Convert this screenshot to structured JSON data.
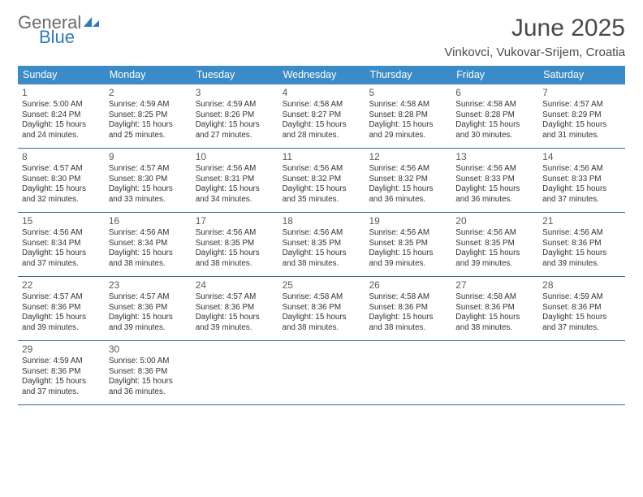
{
  "logo": {
    "general": "General",
    "blue": "Blue"
  },
  "title": "June 2025",
  "location": "Vinkovci, Vukovar-Srijem, Croatia",
  "colors": {
    "header_bg": "#3b8bc8",
    "header_text": "#ffffff",
    "rule": "#3b6a93",
    "logo_gray": "#6a6a6a",
    "logo_blue": "#2e7abf",
    "body_text": "#333333",
    "title_text": "#4a4a4a"
  },
  "weekdays": [
    "Sunday",
    "Monday",
    "Tuesday",
    "Wednesday",
    "Thursday",
    "Friday",
    "Saturday"
  ],
  "days": [
    {
      "n": "1",
      "sunrise": "5:00 AM",
      "sunset": "8:24 PM",
      "daylight": "15 hours and 24 minutes."
    },
    {
      "n": "2",
      "sunrise": "4:59 AM",
      "sunset": "8:25 PM",
      "daylight": "15 hours and 25 minutes."
    },
    {
      "n": "3",
      "sunrise": "4:59 AM",
      "sunset": "8:26 PM",
      "daylight": "15 hours and 27 minutes."
    },
    {
      "n": "4",
      "sunrise": "4:58 AM",
      "sunset": "8:27 PM",
      "daylight": "15 hours and 28 minutes."
    },
    {
      "n": "5",
      "sunrise": "4:58 AM",
      "sunset": "8:28 PM",
      "daylight": "15 hours and 29 minutes."
    },
    {
      "n": "6",
      "sunrise": "4:58 AM",
      "sunset": "8:28 PM",
      "daylight": "15 hours and 30 minutes."
    },
    {
      "n": "7",
      "sunrise": "4:57 AM",
      "sunset": "8:29 PM",
      "daylight": "15 hours and 31 minutes."
    },
    {
      "n": "8",
      "sunrise": "4:57 AM",
      "sunset": "8:30 PM",
      "daylight": "15 hours and 32 minutes."
    },
    {
      "n": "9",
      "sunrise": "4:57 AM",
      "sunset": "8:30 PM",
      "daylight": "15 hours and 33 minutes."
    },
    {
      "n": "10",
      "sunrise": "4:56 AM",
      "sunset": "8:31 PM",
      "daylight": "15 hours and 34 minutes."
    },
    {
      "n": "11",
      "sunrise": "4:56 AM",
      "sunset": "8:32 PM",
      "daylight": "15 hours and 35 minutes."
    },
    {
      "n": "12",
      "sunrise": "4:56 AM",
      "sunset": "8:32 PM",
      "daylight": "15 hours and 36 minutes."
    },
    {
      "n": "13",
      "sunrise": "4:56 AM",
      "sunset": "8:33 PM",
      "daylight": "15 hours and 36 minutes."
    },
    {
      "n": "14",
      "sunrise": "4:56 AM",
      "sunset": "8:33 PM",
      "daylight": "15 hours and 37 minutes."
    },
    {
      "n": "15",
      "sunrise": "4:56 AM",
      "sunset": "8:34 PM",
      "daylight": "15 hours and 37 minutes."
    },
    {
      "n": "16",
      "sunrise": "4:56 AM",
      "sunset": "8:34 PM",
      "daylight": "15 hours and 38 minutes."
    },
    {
      "n": "17",
      "sunrise": "4:56 AM",
      "sunset": "8:35 PM",
      "daylight": "15 hours and 38 minutes."
    },
    {
      "n": "18",
      "sunrise": "4:56 AM",
      "sunset": "8:35 PM",
      "daylight": "15 hours and 38 minutes."
    },
    {
      "n": "19",
      "sunrise": "4:56 AM",
      "sunset": "8:35 PM",
      "daylight": "15 hours and 39 minutes."
    },
    {
      "n": "20",
      "sunrise": "4:56 AM",
      "sunset": "8:35 PM",
      "daylight": "15 hours and 39 minutes."
    },
    {
      "n": "21",
      "sunrise": "4:56 AM",
      "sunset": "8:36 PM",
      "daylight": "15 hours and 39 minutes."
    },
    {
      "n": "22",
      "sunrise": "4:57 AM",
      "sunset": "8:36 PM",
      "daylight": "15 hours and 39 minutes."
    },
    {
      "n": "23",
      "sunrise": "4:57 AM",
      "sunset": "8:36 PM",
      "daylight": "15 hours and 39 minutes."
    },
    {
      "n": "24",
      "sunrise": "4:57 AM",
      "sunset": "8:36 PM",
      "daylight": "15 hours and 39 minutes."
    },
    {
      "n": "25",
      "sunrise": "4:58 AM",
      "sunset": "8:36 PM",
      "daylight": "15 hours and 38 minutes."
    },
    {
      "n": "26",
      "sunrise": "4:58 AM",
      "sunset": "8:36 PM",
      "daylight": "15 hours and 38 minutes."
    },
    {
      "n": "27",
      "sunrise": "4:58 AM",
      "sunset": "8:36 PM",
      "daylight": "15 hours and 38 minutes."
    },
    {
      "n": "28",
      "sunrise": "4:59 AM",
      "sunset": "8:36 PM",
      "daylight": "15 hours and 37 minutes."
    },
    {
      "n": "29",
      "sunrise": "4:59 AM",
      "sunset": "8:36 PM",
      "daylight": "15 hours and 37 minutes."
    },
    {
      "n": "30",
      "sunrise": "5:00 AM",
      "sunset": "8:36 PM",
      "daylight": "15 hours and 36 minutes."
    }
  ],
  "labels": {
    "sunrise": "Sunrise: ",
    "sunset": "Sunset: ",
    "daylight": "Daylight: "
  }
}
